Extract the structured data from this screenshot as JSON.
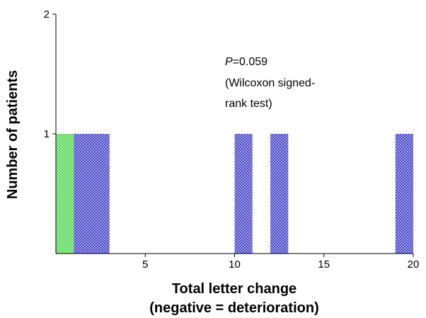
{
  "chart_data": {
    "type": "bar",
    "xlabel_line1": "Total letter change",
    "xlabel_line2": "(negative = deterioration)",
    "ylabel": "Number of patients",
    "xlim": [
      0,
      20
    ],
    "ylim": [
      0,
      2
    ],
    "x_ticks": [
      5,
      10,
      15,
      20
    ],
    "y_ticks": [
      1,
      2
    ],
    "grid": false,
    "bin_width": 1,
    "series": [
      {
        "color": "#55dd55",
        "hatch": "crosshatch",
        "bars": [
          {
            "x_start": 0,
            "x_end": 1,
            "value": 1
          }
        ]
      },
      {
        "color": "#2222bb",
        "hatch": "crosshatch",
        "bars": [
          {
            "x_start": 1,
            "x_end": 2,
            "value": 1
          },
          {
            "x_start": 2,
            "x_end": 3,
            "value": 1
          },
          {
            "x_start": 10,
            "x_end": 11,
            "value": 1
          },
          {
            "x_start": 12,
            "x_end": 13,
            "value": 1
          },
          {
            "x_start": 19,
            "x_end": 20,
            "value": 1
          }
        ]
      }
    ],
    "annotation": {
      "p_symbol": "P",
      "p_value": "=0.059",
      "line2": "(Wilcoxon signed-",
      "line3": "rank test)"
    }
  }
}
